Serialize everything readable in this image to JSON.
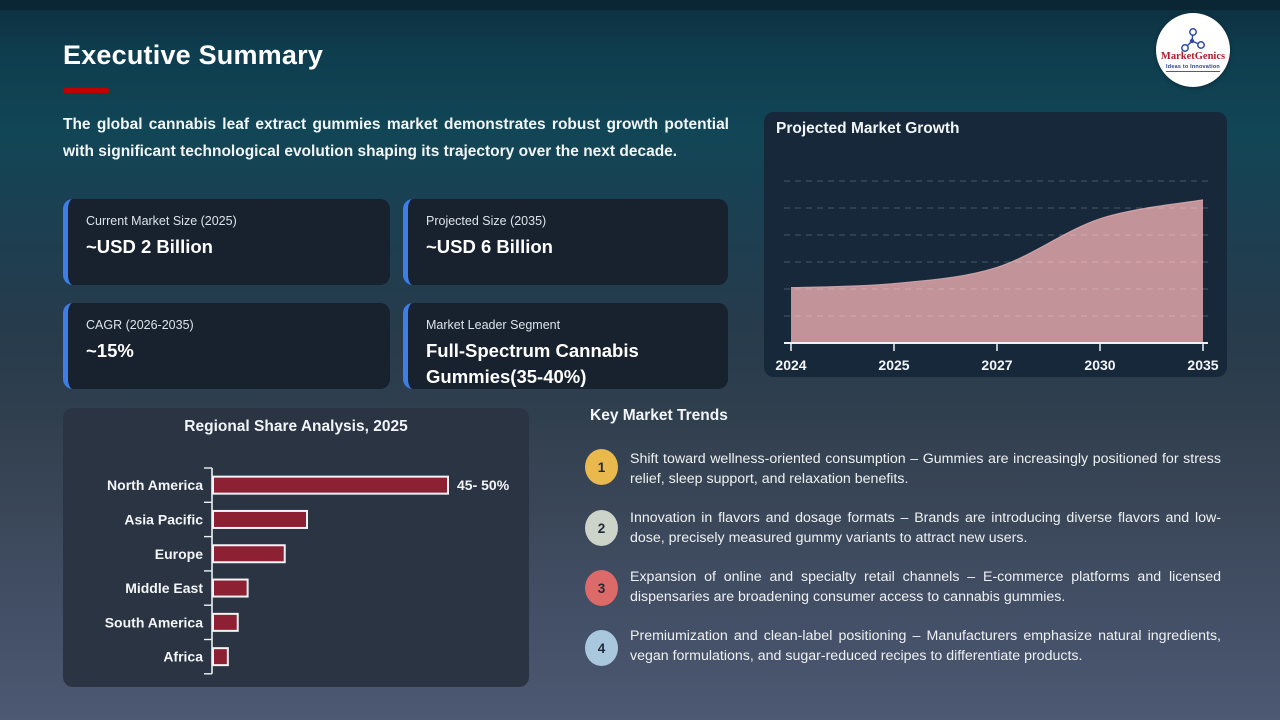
{
  "slide": {
    "title": "Executive Summary",
    "accent_color": "#c00000",
    "intro": "The global cannabis leaf extract gummies market demonstrates robust growth potential with significant technological evolution shaping its trajectory over the next decade."
  },
  "logo": {
    "brand": "MarketGenics",
    "tagline": "Ideas to Innovation"
  },
  "stats": [
    {
      "label": "Current Market Size (2025)",
      "value": "~USD 2 Billion"
    },
    {
      "label": "Projected Size (2035)",
      "value": "~USD 6 Billion"
    },
    {
      "label": "CAGR (2026-2035)",
      "value": "~15%"
    },
    {
      "label": "Market Leader Segment",
      "value": "Full-Spectrum Cannabis Gummies(35-40%)"
    }
  ],
  "trends": {
    "title": "Key Market Trends",
    "items": [
      {
        "num": "1",
        "color": "#e9b94e",
        "text": "Shift toward wellness-oriented consumption – Gummies are increasingly positioned for stress relief, sleep support, and relaxation benefits."
      },
      {
        "num": "2",
        "color": "#ccd3c8",
        "text": "Innovation in flavors and dosage formats – Brands are introducing diverse flavors and low-dose, precisely measured gummy variants to attract new users."
      },
      {
        "num": "3",
        "color": "#dc6a68",
        "text": "Expansion of online and specialty retail channels – E-commerce platforms and licensed dispensaries are broadening consumer access to cannabis gummies."
      },
      {
        "num": "4",
        "color": "#a9c8de",
        "text": "Premiumization and clean-label positioning – Manufacturers emphasize natural ingredients, vegan formulations, and sugar-reduced recipes to differentiate products."
      }
    ]
  },
  "chart_data": [
    {
      "id": "growth",
      "type": "area",
      "title": "Projected Market Growth",
      "x": [
        "2024",
        "2025",
        "2027",
        "2030",
        "2035"
      ],
      "values": [
        2.05,
        2.2,
        2.8,
        4.6,
        5.3
      ],
      "ylim": [
        0,
        6
      ],
      "gridlines": 6,
      "grid_style": "dashed",
      "fill_color": "#c29399",
      "axis_color": "#eef2f5"
    },
    {
      "id": "regional",
      "type": "bar",
      "orientation": "horizontal",
      "title": "Regional Share Analysis, 2025",
      "categories": [
        "North America",
        "Asia Pacific",
        "Europe",
        "Middle East",
        "South America",
        "Africa"
      ],
      "values": [
        47.5,
        19,
        14.5,
        7,
        5,
        3
      ],
      "value_labels": [
        "45- 50%",
        "",
        "",
        "",
        "",
        ""
      ],
      "bar_color": "#8e2033",
      "bar_stroke": "#f2f4f6",
      "xlim": [
        0,
        50
      ]
    }
  ]
}
